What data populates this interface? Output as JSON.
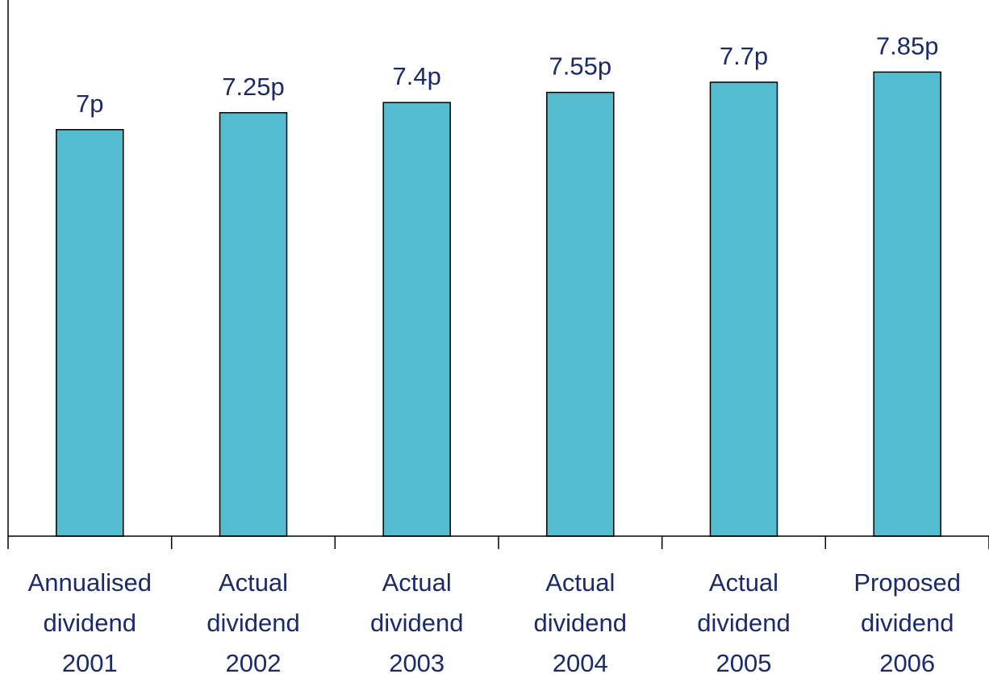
{
  "chart_data": {
    "type": "bar",
    "categories": [
      [
        "Annualised",
        "dividend",
        "2001"
      ],
      [
        "Actual",
        "dividend",
        "2002"
      ],
      [
        "Actual",
        "dividend",
        "2003"
      ],
      [
        "Actual",
        "dividend",
        "2004"
      ],
      [
        "Actual",
        "dividend",
        "2005"
      ],
      [
        "Proposed",
        "dividend",
        "2006"
      ]
    ],
    "values": [
      7,
      7.25,
      7.4,
      7.55,
      7.7,
      7.85
    ],
    "data_labels": [
      "7p",
      "7.25p",
      "7.4p",
      "7.55p",
      "7.7p",
      "7.85p"
    ],
    "ylim": [
      1,
      8.2
    ],
    "grid": false,
    "legend": "none",
    "colors": {
      "bar": "#55bbcf",
      "label_text": "#1a2a6c",
      "axis": "#000000"
    }
  }
}
